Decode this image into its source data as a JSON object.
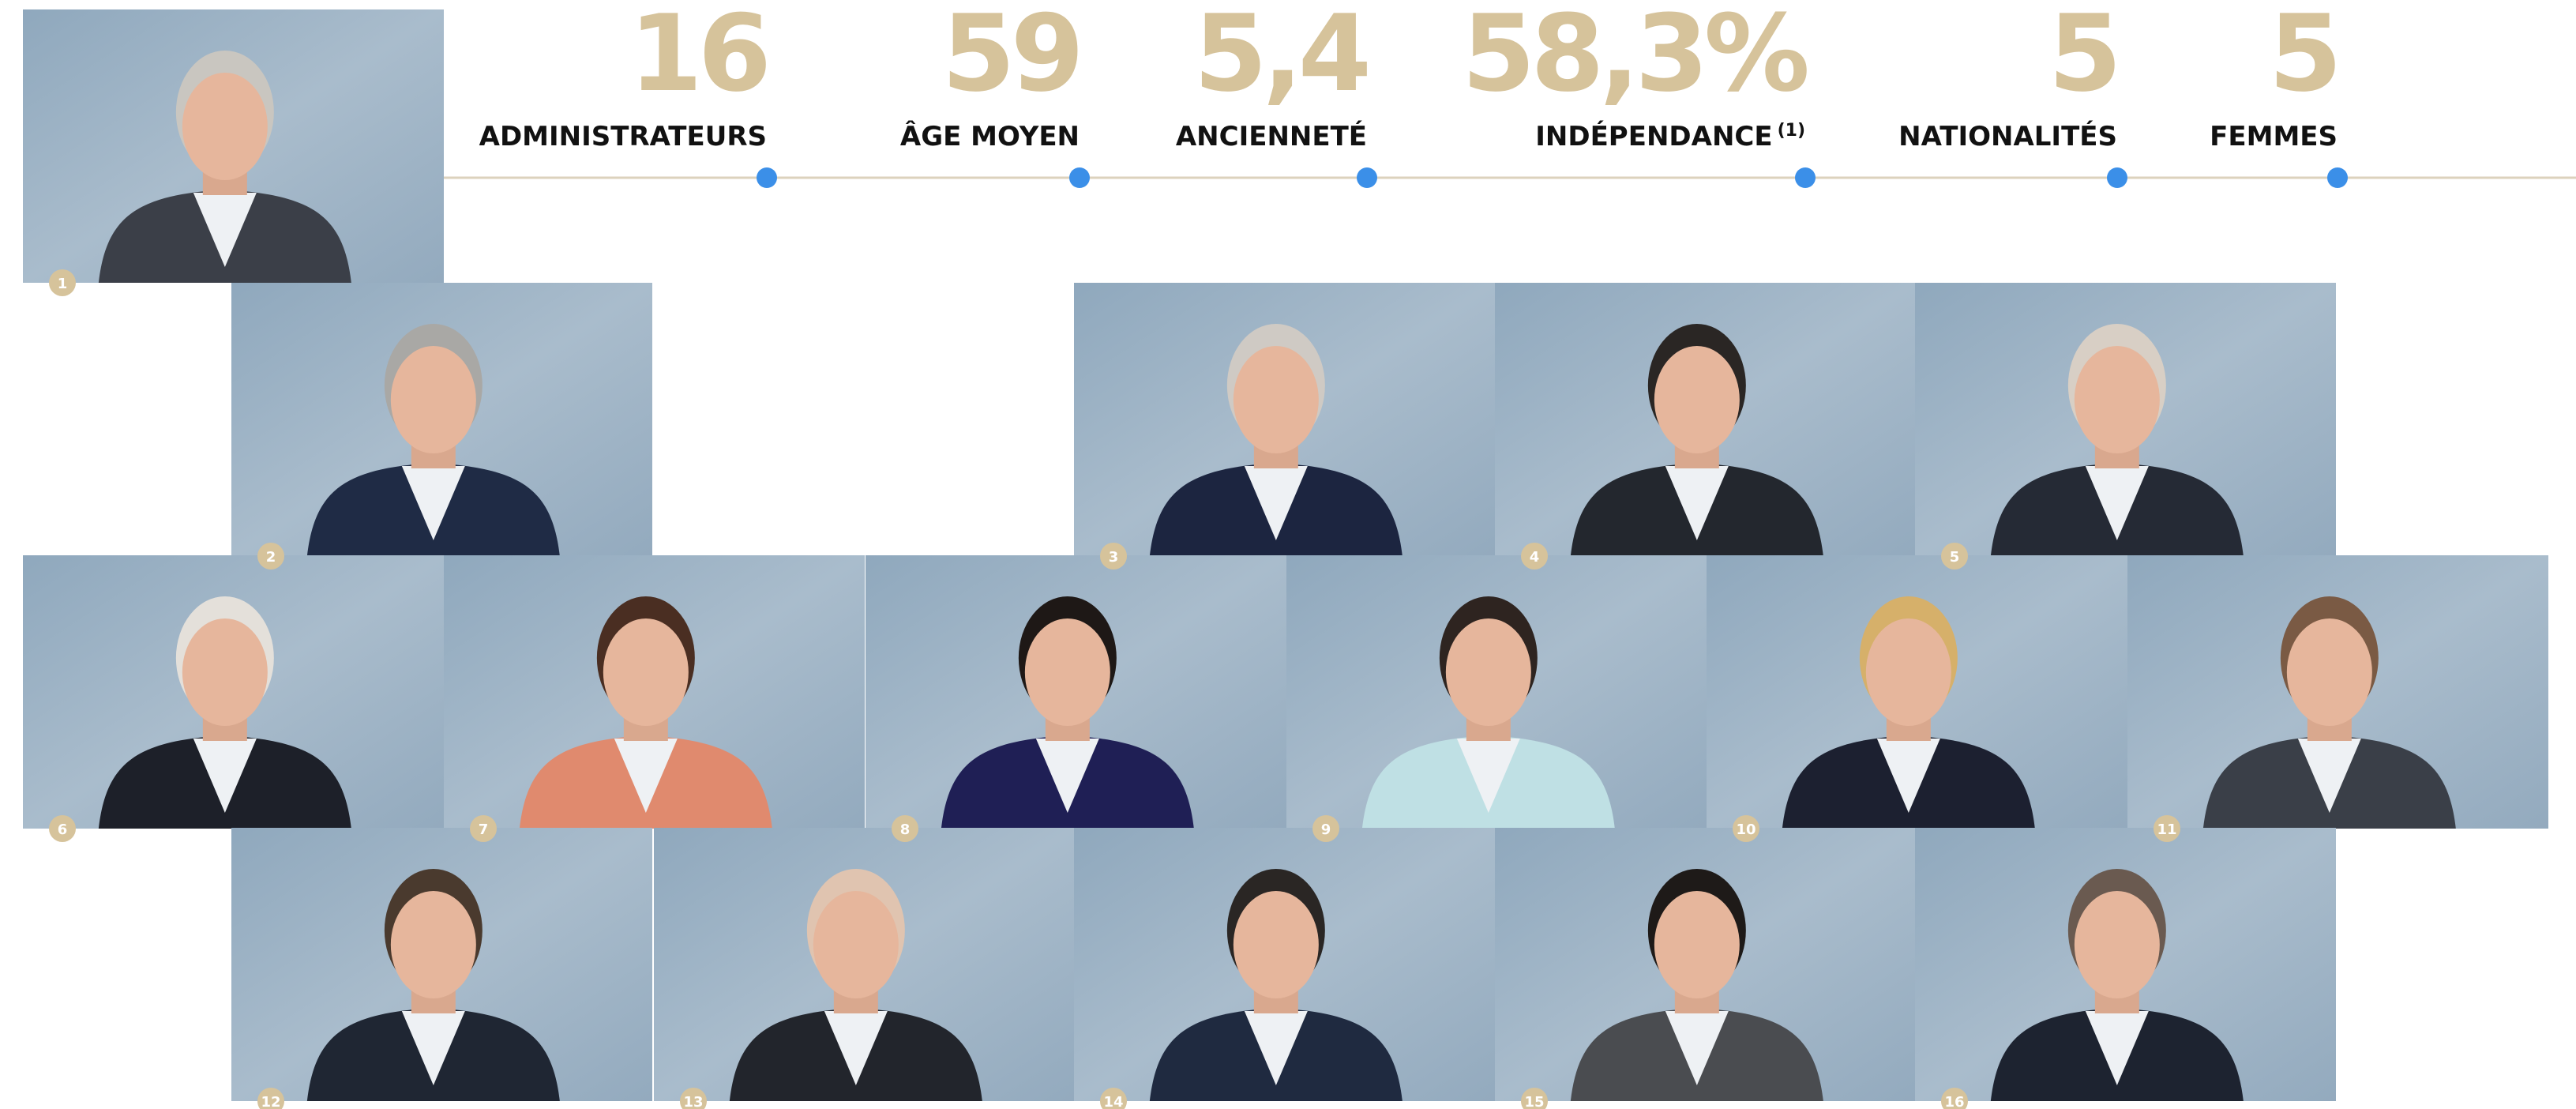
{
  "stats": [
    {
      "value": "16",
      "label": "ADMINISTRATEURS"
    },
    {
      "value": "59",
      "label": "ÂGE MOYEN"
    },
    {
      "value": "5,4",
      "label": "ANCIENNETÉ"
    },
    {
      "value": "58,3%",
      "label": "INDÉPENDANCE",
      "note": "(1)"
    },
    {
      "value": "5",
      "label": "NATIONALITÉS"
    },
    {
      "value": "5",
      "label": "FEMMES"
    }
  ],
  "portraits": [
    "1",
    "2",
    "3",
    "4",
    "5",
    "6",
    "7",
    "8",
    "9",
    "10",
    "11",
    "12",
    "13",
    "14",
    "15",
    "16"
  ]
}
